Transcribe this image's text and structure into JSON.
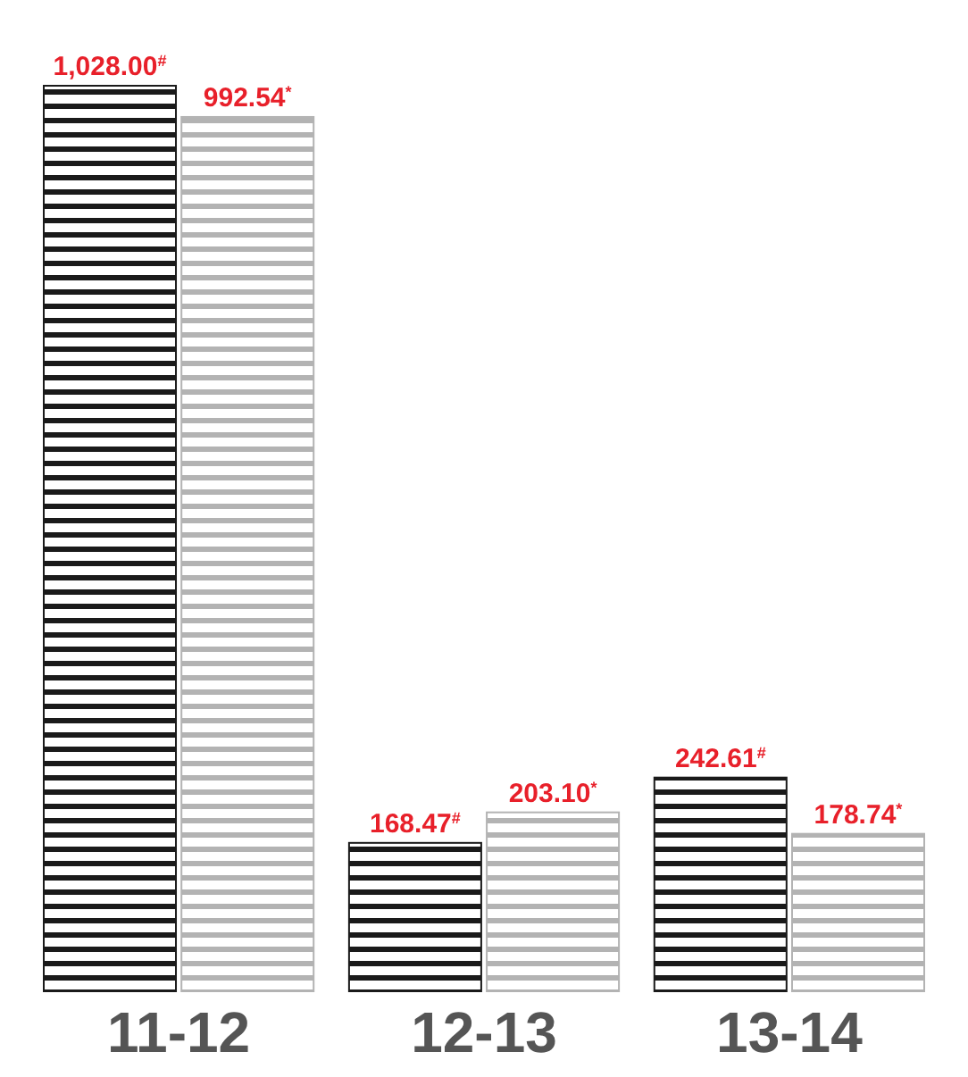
{
  "chart_data": {
    "type": "bar",
    "categories": [
      "11-12",
      "12-13",
      "13-14"
    ],
    "series": [
      {
        "color": "#1a1a1a",
        "values": [
          1028.0,
          168.47,
          242.61
        ],
        "value_labels": [
          "1,028.00$^{#}$",
          "168.47$^{#}$",
          "242.61$^{#}$"
        ]
      },
      {
        "color": "#b3b3b3",
        "values": [
          992.54,
          203.1,
          178.74
        ],
        "value_labels": [
          "992.54$^{*}$",
          "203.10$^{*}$",
          "178.74$^{*}$"
        ]
      }
    ]
  }
}
